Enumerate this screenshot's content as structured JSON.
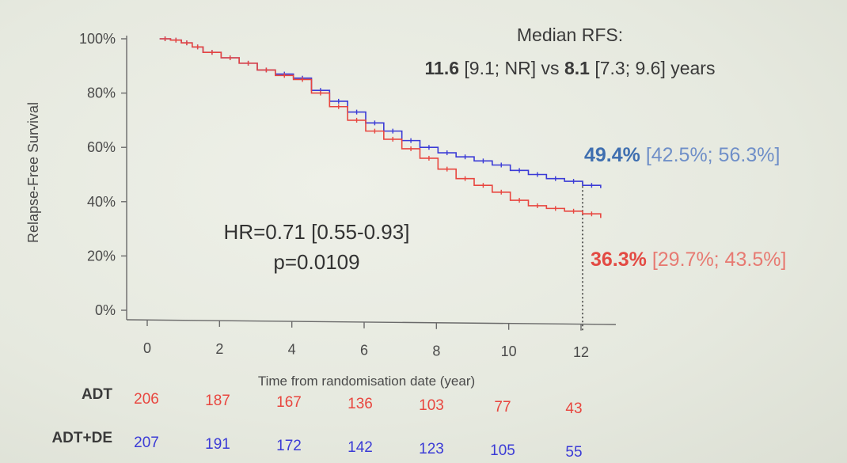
{
  "median_rfs": {
    "label": "Median RFS:",
    "arm1_value": "11.6",
    "arm1_ci": " [9.1; NR] vs ",
    "arm2_value": "8.1",
    "arm2_ci": " [7.3; 9.6] years"
  },
  "hr_text": "HR=0.71 [0.55-0.93]",
  "p_text": "p=0.0109",
  "end_labels": {
    "blue_value": "49.4%",
    "blue_ci": " [42.5%; 56.3%]",
    "red_value": "36.3%",
    "red_ci": " [29.7%; 43.5%]"
  },
  "colors": {
    "adt": "#e8463f",
    "adt_de": "#3b3bd6",
    "blue_label": "#3f6fb0",
    "blue_ci": "#6f8fc8",
    "red_label": "#e34a43",
    "red_ci": "#e77a72"
  },
  "risk_table": {
    "times": [
      0,
      2,
      4,
      6,
      8,
      10,
      12
    ],
    "rows": [
      {
        "name": "ADT",
        "color_key": "adt",
        "values": [
          "206",
          "187",
          "167",
          "136",
          "103",
          "77",
          "43"
        ]
      },
      {
        "name": "ADT+DE",
        "color_key": "adt_de",
        "values": [
          "207",
          "191",
          "172",
          "142",
          "123",
          "105",
          "55"
        ]
      }
    ]
  },
  "chart_data": {
    "type": "line",
    "xlabel": "Time from randomisation date (year)",
    "ylabel": "Relapse-Free Survival",
    "xlim": [
      0,
      12.7
    ],
    "ylim": [
      0,
      100
    ],
    "xticks": [
      0,
      2,
      4,
      6,
      8,
      10,
      12
    ],
    "yticks": [
      0,
      20,
      40,
      60,
      80,
      100
    ],
    "ytick_labels": [
      "0%",
      "20%",
      "40%",
      "60%",
      "80%",
      "100%"
    ],
    "reference_line_x": 12,
    "series": [
      {
        "color_key": "adt_de",
        "x": [
          0.3,
          0.6,
          0.9,
          1.2,
          1.5,
          2.0,
          2.5,
          3.0,
          3.5,
          4.0,
          4.5,
          5.0,
          5.5,
          6.0,
          6.5,
          7.0,
          7.5,
          8.0,
          8.5,
          9.0,
          9.5,
          10.0,
          10.5,
          11.0,
          11.5,
          12.0,
          12.5
        ],
        "y": [
          100,
          99.5,
          98.5,
          97,
          95,
          93,
          91,
          88.5,
          87,
          85.5,
          81,
          77,
          73,
          69,
          66,
          62.5,
          60,
          58,
          56.5,
          55,
          53.5,
          51.5,
          50,
          48.5,
          47.5,
          46,
          45
        ]
      },
      {
        "color_key": "adt",
        "x": [
          0.3,
          0.6,
          0.9,
          1.2,
          1.5,
          2.0,
          2.5,
          3.0,
          3.5,
          4.0,
          4.5,
          5.0,
          5.5,
          6.0,
          6.5,
          7.0,
          7.5,
          8.0,
          8.5,
          9.0,
          9.5,
          10.0,
          10.5,
          11.0,
          11.5,
          12.0,
          12.5
        ],
        "y": [
          100,
          99.5,
          98.5,
          97,
          95,
          93,
          91,
          88.5,
          86.5,
          85,
          80,
          75,
          70,
          66,
          63,
          59.5,
          56,
          52,
          48.5,
          46,
          43.5,
          40.5,
          38.5,
          37.5,
          36.5,
          35.5,
          34
        ]
      }
    ]
  }
}
